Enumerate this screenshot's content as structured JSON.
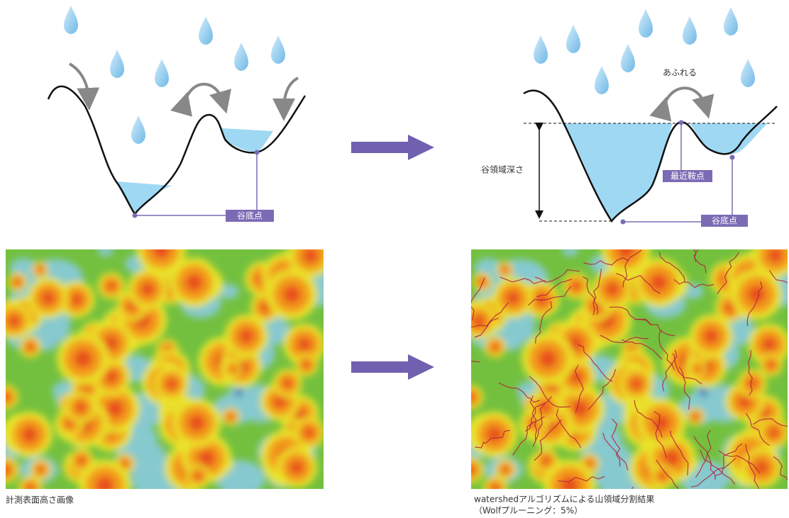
{
  "left_diagram": {
    "valley_bottom_label": "谷底点"
  },
  "right_diagram": {
    "overflow_label": "あふれる",
    "depth_label": "谷領域深さ",
    "saddle_label": "最近鞍点",
    "valley_bottom_label": "谷底点"
  },
  "captions": {
    "left": "計測表面高さ画像",
    "right": [
      "watershedアルゴリズムによる山領域分割結果",
      "（Wolfプルーニング：5%）"
    ]
  }
}
